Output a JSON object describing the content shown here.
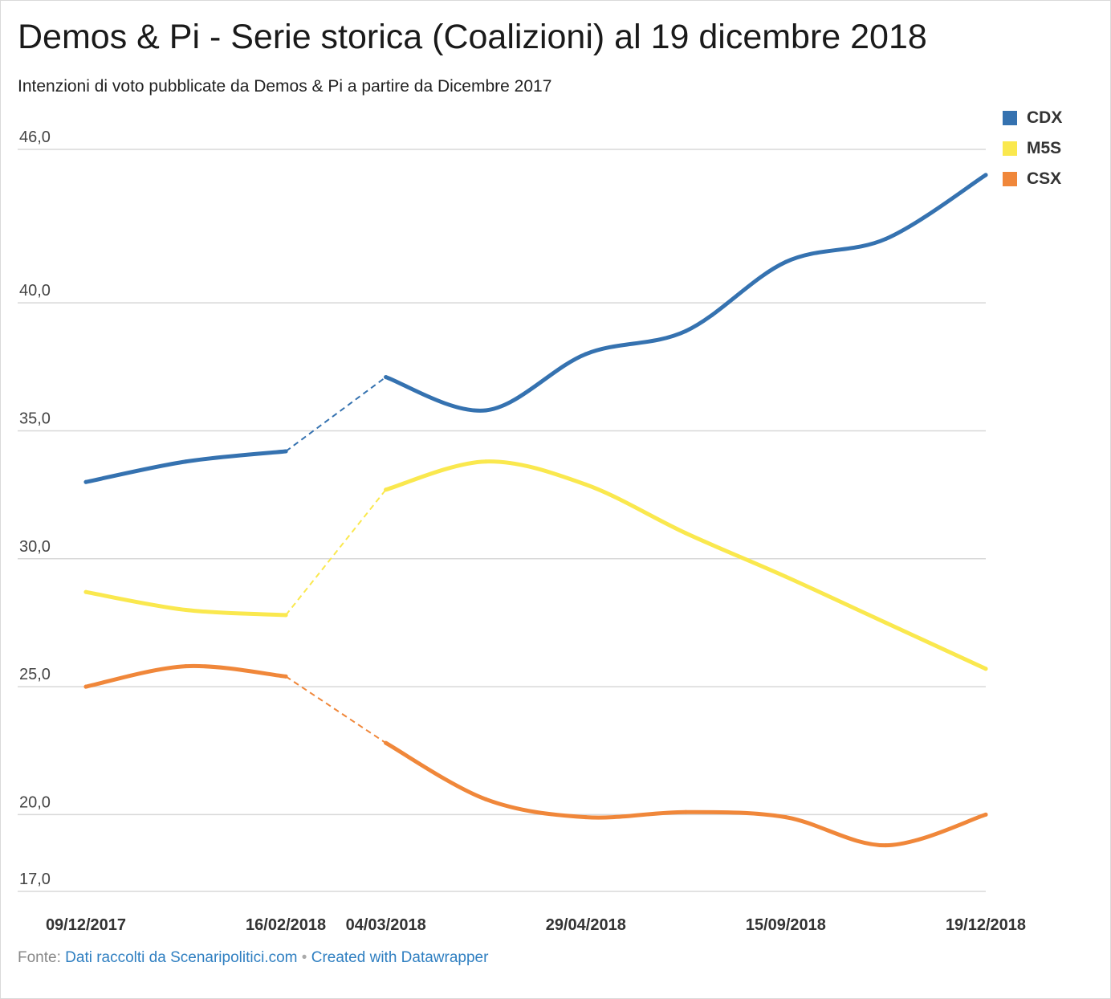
{
  "title": "Demos & Pi - Serie storica (Coalizioni) al 19 dicembre 2018",
  "subtitle": "Intenzioni di voto pubblicate da Demos & Pi a partire da Dicembre 2017",
  "footer": {
    "prefix": "Fonte:",
    "source_link": "Dati raccolti da Scenaripolitici.com",
    "separator": "•",
    "credit_link": "Created with Datawrapper"
  },
  "colors": {
    "CDX": "#3572b0",
    "M5S": "#fae84e",
    "CSX": "#f0873a",
    "grid": "#d8d8d8"
  },
  "chart_data": {
    "type": "line",
    "title": "Demos & Pi - Serie storica (Coalizioni) al 19 dicembre 2018",
    "subtitle": "Intenzioni di voto pubblicate da Demos & Pi a partire da Dicembre 2017",
    "x": [
      "09/12/2017",
      "",
      "16/02/2018",
      "04/03/2018",
      "",
      "29/04/2018",
      "",
      "15/09/2018",
      "",
      "19/12/2018"
    ],
    "x_tick_labels": [
      "09/12/2017",
      "16/02/2018",
      "04/03/2018",
      "29/04/2018",
      "15/09/2018",
      "19/12/2018"
    ],
    "y_ticks": [
      46.0,
      40.0,
      35.0,
      30.0,
      25.0,
      20.0,
      17.0
    ],
    "y_tick_labels": [
      "46,0",
      "40,0",
      "35,0",
      "30,0",
      "25,0",
      "20,0",
      "17,0"
    ],
    "ylim": [
      17,
      46
    ],
    "grid": true,
    "legend_position": "top-right",
    "gap": {
      "from_index": 2,
      "to_index": 3,
      "style": "dashed"
    },
    "series": [
      {
        "name": "CDX",
        "color": "#3572b0",
        "values": [
          33.0,
          33.8,
          34.2,
          37.1,
          35.8,
          38.0,
          38.9,
          41.6,
          42.5,
          45.0
        ]
      },
      {
        "name": "M5S",
        "color": "#fae84e",
        "values": [
          28.7,
          28.0,
          27.8,
          32.7,
          33.8,
          32.9,
          31.0,
          29.3,
          27.5,
          25.7
        ]
      },
      {
        "name": "CSX",
        "color": "#f0873a",
        "values": [
          25.0,
          25.8,
          25.4,
          22.8,
          20.6,
          19.9,
          20.1,
          19.9,
          18.8,
          20.0
        ]
      }
    ]
  }
}
